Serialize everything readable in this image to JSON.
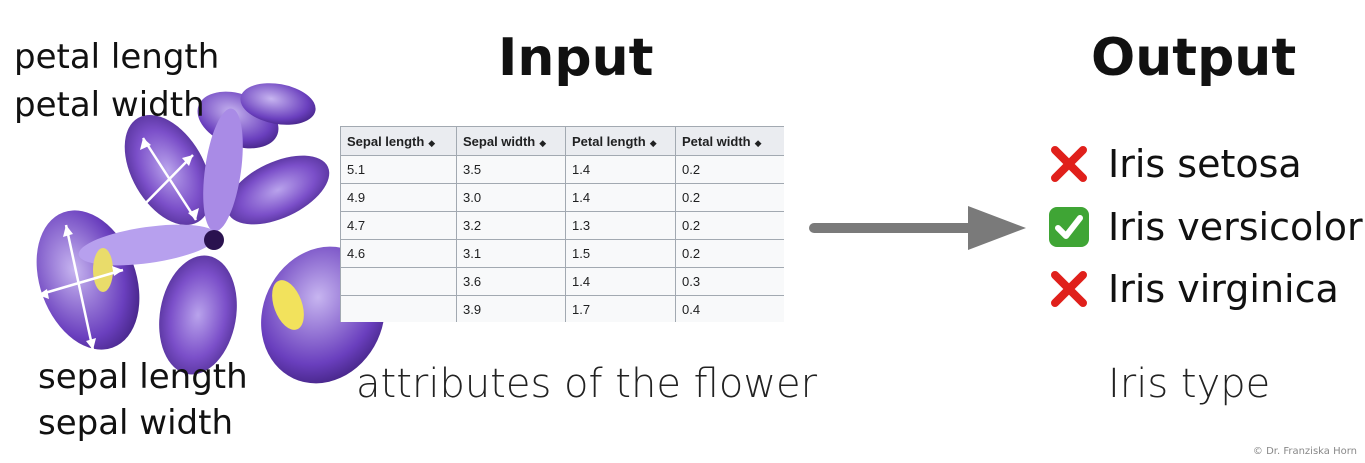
{
  "flower_labels": {
    "petal_length": "petal length",
    "petal_width": "petal width",
    "sepal_length": "sepal length",
    "sepal_width": "sepal width"
  },
  "input": {
    "heading": "Input",
    "caption": "attributes of the flower",
    "table": {
      "headers": [
        "Sepal length",
        "Sepal width",
        "Petal length",
        "Petal width"
      ],
      "rows": [
        [
          "5.1",
          "3.5",
          "1.4",
          "0.2"
        ],
        [
          "4.9",
          "3.0",
          "1.4",
          "0.2"
        ],
        [
          "4.7",
          "3.2",
          "1.3",
          "0.2"
        ],
        [
          "4.6",
          "3.1",
          "1.5",
          "0.2"
        ],
        [
          "",
          "3.6",
          "1.4",
          "0.3"
        ],
        [
          "",
          "3.9",
          "1.7",
          "0.4"
        ]
      ]
    }
  },
  "output": {
    "heading": "Output",
    "caption": "Iris type",
    "options": [
      {
        "label": "Iris setosa",
        "status_icon": "cross-mark-icon"
      },
      {
        "label": "Iris versicolor",
        "status_icon": "check-mark-icon"
      },
      {
        "label": "Iris virginica",
        "status_icon": "cross-mark-icon"
      }
    ]
  },
  "copyright": "© Dr. Franziska Horn",
  "colors": {
    "arrow": "#7a7a7a",
    "cross": "#e0201b",
    "check": "#3fa535",
    "petal": "#7b4fc9",
    "petal_dark": "#4a2a8c"
  }
}
